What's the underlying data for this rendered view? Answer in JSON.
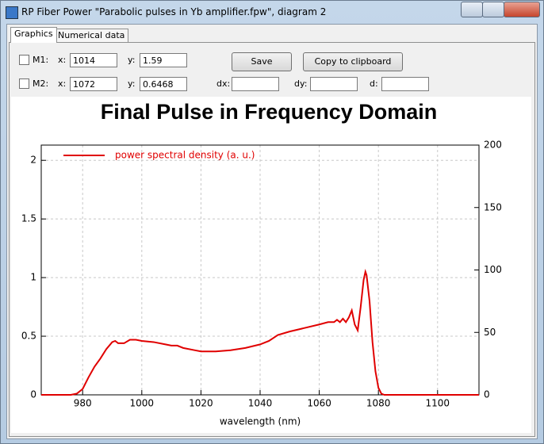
{
  "window": {
    "title": "RP Fiber Power \"Parabolic pulses in Yb amplifier.fpw\", diagram 2"
  },
  "tabs": [
    "Graphics",
    "Numerical data"
  ],
  "markers": [
    {
      "label": "M1:",
      "x_label": "x:",
      "x": 1014,
      "y_label": "y:",
      "y": 1.59
    },
    {
      "label": "M2:",
      "x_label": "x:",
      "x": 1072,
      "y_label": "y:",
      "y": 0.6468
    }
  ],
  "deltas": [
    "dx:",
    "dy:",
    "d:"
  ],
  "buttons": [
    "Save",
    "Copy to clipboard"
  ],
  "chart_data": {
    "type": "line",
    "title": "Final Pulse in Frequency Domain",
    "x_label": "wavelength (nm)",
    "x": [
      966,
      976,
      978,
      980,
      982,
      984,
      986,
      988,
      990,
      991,
      992,
      994,
      996,
      998,
      1000,
      1004,
      1008,
      1010,
      1012,
      1014,
      1018,
      1020,
      1025,
      1030,
      1035,
      1040,
      1043,
      1046,
      1050,
      1055,
      1060,
      1063,
      1065,
      1066,
      1067,
      1068,
      1069,
      1070,
      1071,
      1072,
      1073,
      1074,
      1075,
      1075.6,
      1076,
      1077,
      1078,
      1079,
      1080,
      1081,
      1082,
      1114
    ],
    "series": [
      {
        "name": "power spectral density (a. u.)",
        "color": "#e00000",
        "values": [
          0,
          0,
          0.01,
          0.05,
          0.15,
          0.24,
          0.31,
          0.39,
          0.45,
          0.46,
          0.44,
          0.44,
          0.47,
          0.47,
          0.46,
          0.45,
          0.43,
          0.42,
          0.42,
          0.4,
          0.38,
          0.37,
          0.37,
          0.38,
          0.4,
          0.43,
          0.46,
          0.51,
          0.54,
          0.57,
          0.6,
          0.62,
          0.62,
          0.64,
          0.62,
          0.65,
          0.62,
          0.66,
          0.72,
          0.6,
          0.55,
          0.75,
          0.98,
          1.05,
          1.02,
          0.8,
          0.45,
          0.2,
          0.06,
          0.01,
          0,
          0
        ]
      }
    ],
    "xlim": [
      966,
      1114
    ],
    "xticks": [
      980,
      1000,
      1020,
      1040,
      1060,
      1080,
      1100
    ],
    "ylim": [
      0,
      2.13
    ],
    "yticks": [
      0,
      0.5,
      1,
      1.5,
      2
    ],
    "y2lim": [
      0,
      200
    ],
    "y2ticks": [
      0,
      50,
      100,
      150,
      200
    ],
    "grid": true,
    "legend": "upper-left"
  }
}
